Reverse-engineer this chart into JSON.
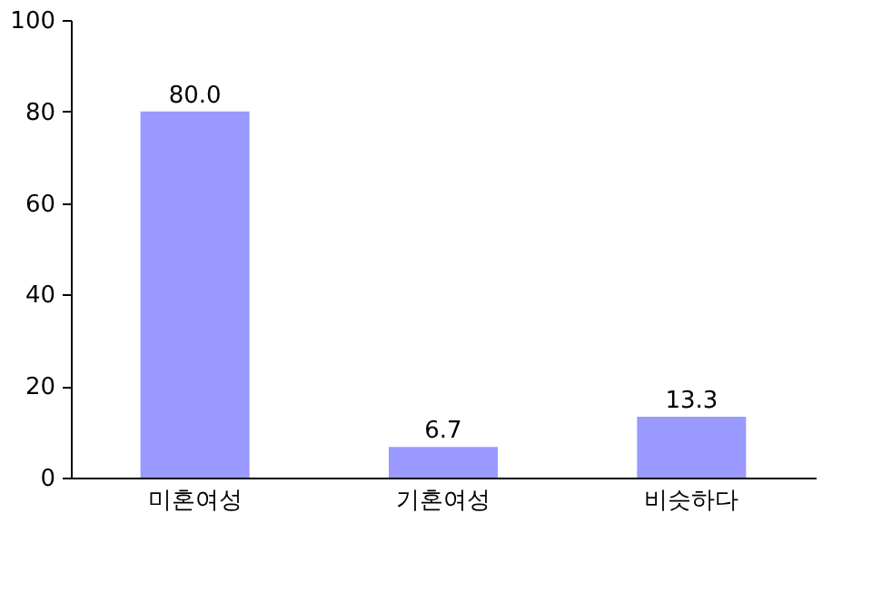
{
  "chart_data": {
    "type": "bar",
    "categories": [
      "미혼여성",
      "기혼여성",
      "비슷하다"
    ],
    "values": [
      80.0,
      6.7,
      13.3
    ],
    "value_labels": [
      "80.0",
      "6.7",
      "13.3"
    ],
    "color": "#9999ff",
    "ylim": [
      0,
      100
    ],
    "yticks": [
      0,
      20,
      40,
      60,
      80,
      100
    ],
    "grid": false
  }
}
